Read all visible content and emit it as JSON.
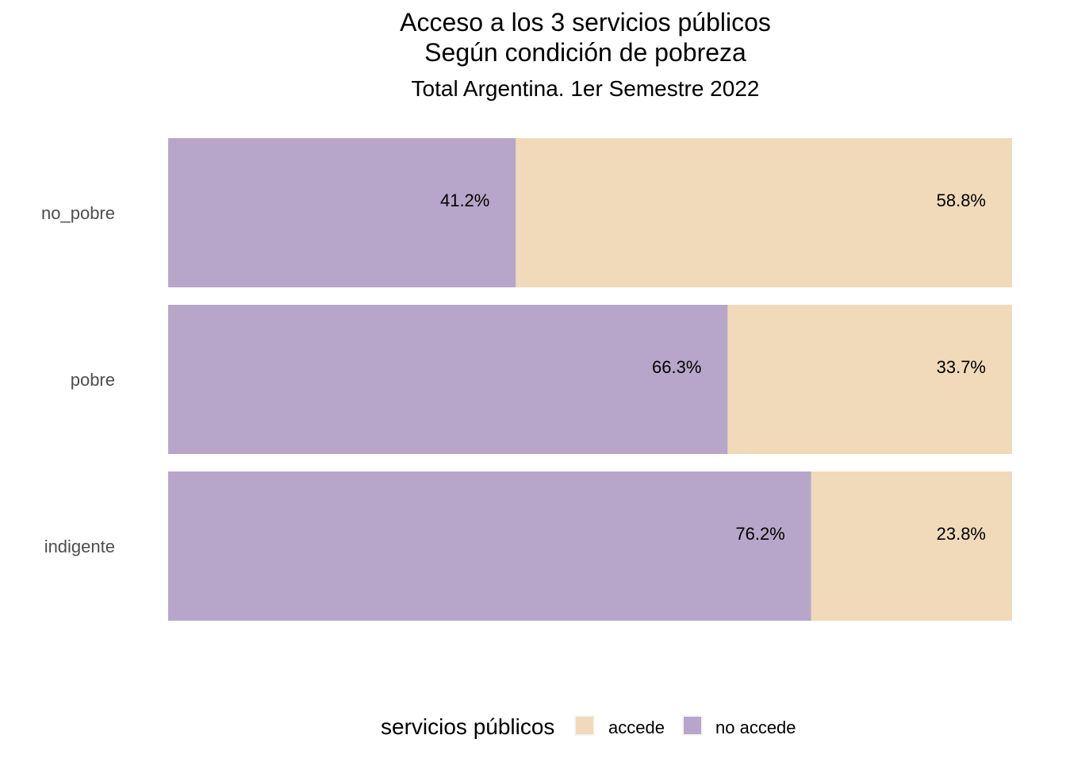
{
  "chart_data": {
    "type": "bar",
    "orientation": "horizontal",
    "stacked": true,
    "title": "Acceso a los 3 servicios públicos",
    "title_line2": "Según condición de pobreza",
    "subtitle": "Total Argentina. 1er Semestre 2022",
    "categories": [
      "no_pobre",
      "pobre",
      "indigente"
    ],
    "series": [
      {
        "name": "no accede",
        "color": "#b7a6ca",
        "values": [
          41.2,
          66.3,
          76.2
        ],
        "labels": [
          "41.2%",
          "66.3%",
          "76.2%"
        ]
      },
      {
        "name": "accede",
        "color": "#f1dab9",
        "values": [
          58.8,
          33.7,
          23.8
        ],
        "labels": [
          "58.8%",
          "33.7%",
          "23.8%"
        ]
      }
    ],
    "xlim": [
      0,
      100
    ],
    "grid": false,
    "legend": {
      "title": "servicios públicos",
      "position": "bottom",
      "entries": [
        {
          "label": "accede",
          "color": "#f1dab9"
        },
        {
          "label": "no accede",
          "color": "#b7a6ca"
        }
      ]
    }
  }
}
